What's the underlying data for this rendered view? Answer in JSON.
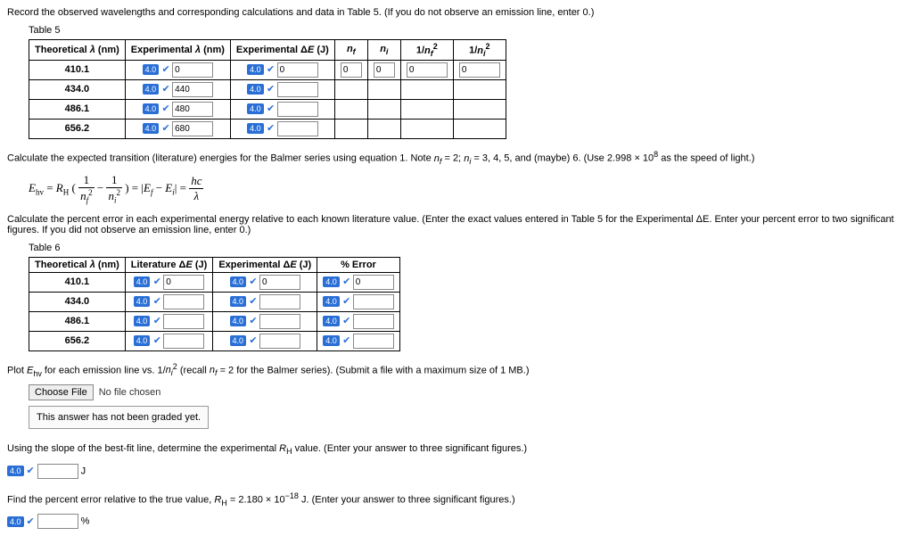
{
  "instructions": {
    "table5_intro": "Record the observed wavelengths and corresponding calculations and data in Table 5. (If you do not observe an emission line, enter 0.)",
    "table5_label": "Table 5",
    "calc_transition": "Calculate the expected transition (literature) energies for the Balmer series using equation 1. Note n_f = 2; n_i = 3, 4, 5, and (maybe) 6. (Use 2.998 × 10^8 as the speed of light.)",
    "percent_error_intro": "Calculate the percent error in each experimental energy relative to each known literature value. (Enter the exact values entered in Table 5 for the Experimental ΔE. Enter your percent error to two significant figures. If you did not observe an emission line, enter 0.)",
    "table6_label": "Table 6",
    "plot_intro": "Plot E_hv for each emission line vs. 1/n_i^2 (recall n_f = 2 for the Balmer series). (Submit a file with a maximum size of 1 MB.)",
    "not_graded": "This answer has not been graded yet.",
    "slope_intro": "Using the slope of the best-fit line, determine the experimental R_H value. (Enter your answer to three significant figures.)",
    "find_percent_intro": "Find the percent error relative to the true value, R_H = 2.180 × 10^-18 J. (Enter your answer to three significant figures.)"
  },
  "table5": {
    "headers": [
      "Theoretical λ (nm)",
      "Experimental λ (nm)",
      "Experimental ΔE (J)",
      "n_f",
      "n_i",
      "1/n_f^2",
      "1/n_i^2"
    ],
    "rows": [
      {
        "theo": "410.1",
        "exp": "0",
        "de": "0",
        "nf": "0",
        "ni": "0",
        "invnf": "0",
        "invni": "0"
      },
      {
        "theo": "434.0",
        "exp": "440",
        "de": "",
        "nf": "",
        "ni": "",
        "invnf": "",
        "invni": ""
      },
      {
        "theo": "486.1",
        "exp": "480",
        "de": "",
        "nf": "",
        "ni": "",
        "invnf": "",
        "invni": ""
      },
      {
        "theo": "656.2",
        "exp": "680",
        "de": "",
        "nf": "",
        "ni": "",
        "invnf": "",
        "invni": ""
      }
    ]
  },
  "table6": {
    "headers": [
      "Theoretical λ (nm)",
      "Literature ΔE (J)",
      "Experimental ΔE (J)",
      "% Error"
    ],
    "rows": [
      {
        "theo": "410.1",
        "lit": "0",
        "exp": "0",
        "err": "0"
      },
      {
        "theo": "434.0",
        "lit": "",
        "exp": "",
        "err": ""
      },
      {
        "theo": "486.1",
        "lit": "",
        "exp": "",
        "err": ""
      },
      {
        "theo": "656.2",
        "lit": "",
        "exp": "",
        "err": ""
      }
    ]
  },
  "badge_text": "4.0",
  "file": {
    "choose": "Choose File",
    "none": "No file chosen"
  },
  "units": {
    "j": "J",
    "pct": "%"
  },
  "formula_parts": {
    "ehv": "E",
    "hv": "hv",
    "eq": " = R",
    "h": "H",
    "lp": "(",
    "frac1": "1",
    "nf2": "n",
    "rp": ") = |E",
    "f": "f",
    "minus": " − E",
    "i": "i",
    "close": "| = ",
    "hc": "hc",
    "lam": "λ"
  },
  "colors": {
    "badge": "#2a6fd6",
    "border": "#000"
  }
}
